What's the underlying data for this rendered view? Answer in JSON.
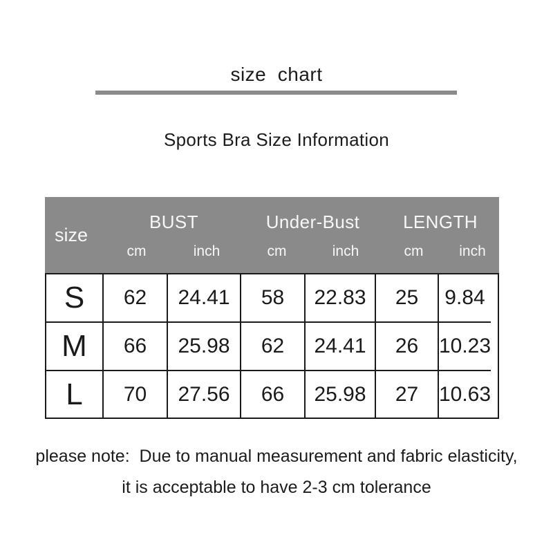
{
  "page": {
    "title": "size  chart",
    "subtitle": "Sports Bra Size Information",
    "background": "#ffffff"
  },
  "colors": {
    "header_bg": "#8a8a8a",
    "header_text": "#f7f7f7",
    "divider": "#8a8a8a",
    "body_text": "#1a1a1a",
    "table_border": "#1a1a1a"
  },
  "table": {
    "corner_label": "size",
    "column_groups": [
      {
        "label": "BUST",
        "subcolumns": [
          "cm",
          "inch"
        ]
      },
      {
        "label": "Under-Bust",
        "subcolumns": [
          "cm",
          "inch"
        ]
      },
      {
        "label": "LENGTH",
        "subcolumns": [
          "cm",
          "inch"
        ]
      }
    ],
    "rows": [
      {
        "size": "S",
        "values": [
          "62",
          "24.41",
          "58",
          "22.83",
          "25",
          "9.84"
        ]
      },
      {
        "size": "M",
        "values": [
          "66",
          "25.98",
          "62",
          "24.41",
          "26",
          "10.23"
        ]
      },
      {
        "size": "L",
        "values": [
          "70",
          "27.56",
          "66",
          "25.98",
          "27",
          "10.63"
        ]
      }
    ]
  },
  "note": {
    "line1": "please note:  Due to manual measurement and fabric elasticity,",
    "line2": "it is acceptable to have 2-3 cm tolerance"
  }
}
